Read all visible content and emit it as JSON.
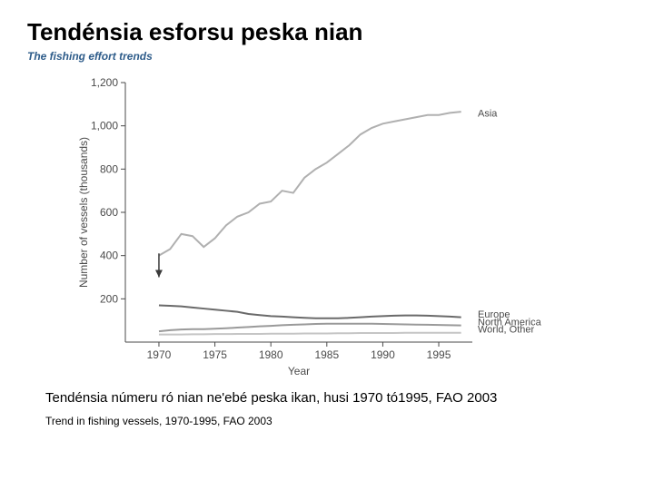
{
  "header": {
    "title": "Tendénsia esforsu peska nian",
    "subtitle": "The fishing effort trends"
  },
  "chart": {
    "type": "line",
    "xlabel": "Year",
    "ylabel": "Number of vessels (thousands)",
    "xlim": [
      1967,
      1998
    ],
    "ylim": [
      0,
      1200
    ],
    "xticks": [
      1970,
      1975,
      1980,
      1985,
      1990,
      1995
    ],
    "yticks": [
      200,
      400,
      600,
      800,
      1000,
      1200
    ],
    "ytick_labels": [
      "200",
      "400",
      "600",
      "800",
      "1,000",
      "1,200"
    ],
    "background_color": "#ffffff",
    "axis_color": "#4a4a4a",
    "line_width": 2,
    "series": [
      {
        "name": "Asia",
        "color": "#b0b0b0",
        "label_y": 1060,
        "data": [
          [
            1970,
            400
          ],
          [
            1971,
            430
          ],
          [
            1972,
            500
          ],
          [
            1973,
            490
          ],
          [
            1974,
            440
          ],
          [
            1975,
            480
          ],
          [
            1976,
            540
          ],
          [
            1977,
            580
          ],
          [
            1978,
            600
          ],
          [
            1979,
            640
          ],
          [
            1980,
            650
          ],
          [
            1981,
            700
          ],
          [
            1982,
            690
          ],
          [
            1983,
            760
          ],
          [
            1984,
            800
          ],
          [
            1985,
            830
          ],
          [
            1986,
            870
          ],
          [
            1987,
            910
          ],
          [
            1988,
            960
          ],
          [
            1989,
            990
          ],
          [
            1990,
            1010
          ],
          [
            1991,
            1020
          ],
          [
            1992,
            1030
          ],
          [
            1993,
            1040
          ],
          [
            1994,
            1050
          ],
          [
            1995,
            1050
          ],
          [
            1996,
            1060
          ],
          [
            1997,
            1065
          ]
        ]
      },
      {
        "name": "Europe",
        "color": "#6a6a6a",
        "label_y": 130,
        "data": [
          [
            1970,
            170
          ],
          [
            1971,
            168
          ],
          [
            1972,
            165
          ],
          [
            1973,
            160
          ],
          [
            1974,
            155
          ],
          [
            1975,
            150
          ],
          [
            1976,
            145
          ],
          [
            1977,
            140
          ],
          [
            1978,
            130
          ],
          [
            1979,
            125
          ],
          [
            1980,
            120
          ],
          [
            1981,
            118
          ],
          [
            1982,
            115
          ],
          [
            1983,
            112
          ],
          [
            1984,
            110
          ],
          [
            1985,
            110
          ],
          [
            1986,
            110
          ],
          [
            1987,
            112
          ],
          [
            1988,
            115
          ],
          [
            1989,
            118
          ],
          [
            1990,
            120
          ],
          [
            1991,
            122
          ],
          [
            1992,
            123
          ],
          [
            1993,
            123
          ],
          [
            1994,
            122
          ],
          [
            1995,
            120
          ],
          [
            1996,
            118
          ],
          [
            1997,
            115
          ]
        ]
      },
      {
        "name": "North America",
        "color": "#9a9a9a",
        "label_y": 95,
        "data": [
          [
            1970,
            50
          ],
          [
            1971,
            55
          ],
          [
            1972,
            58
          ],
          [
            1973,
            60
          ],
          [
            1974,
            60
          ],
          [
            1975,
            62
          ],
          [
            1976,
            64
          ],
          [
            1977,
            67
          ],
          [
            1978,
            70
          ],
          [
            1979,
            73
          ],
          [
            1980,
            75
          ],
          [
            1981,
            78
          ],
          [
            1982,
            80
          ],
          [
            1983,
            82
          ],
          [
            1984,
            84
          ],
          [
            1985,
            85
          ],
          [
            1986,
            85
          ],
          [
            1987,
            85
          ],
          [
            1988,
            85
          ],
          [
            1989,
            85
          ],
          [
            1990,
            84
          ],
          [
            1991,
            83
          ],
          [
            1992,
            82
          ],
          [
            1993,
            81
          ],
          [
            1994,
            80
          ],
          [
            1995,
            79
          ],
          [
            1996,
            78
          ],
          [
            1997,
            77
          ]
        ]
      },
      {
        "name": "World, Other",
        "color": "#c5c5c5",
        "label_y": 60,
        "data": [
          [
            1970,
            35
          ],
          [
            1971,
            35
          ],
          [
            1972,
            35
          ],
          [
            1973,
            36
          ],
          [
            1974,
            36
          ],
          [
            1975,
            37
          ],
          [
            1976,
            37
          ],
          [
            1977,
            38
          ],
          [
            1978,
            38
          ],
          [
            1979,
            38
          ],
          [
            1980,
            39
          ],
          [
            1981,
            39
          ],
          [
            1982,
            39
          ],
          [
            1983,
            40
          ],
          [
            1984,
            40
          ],
          [
            1985,
            40
          ],
          [
            1986,
            41
          ],
          [
            1987,
            41
          ],
          [
            1988,
            42
          ],
          [
            1989,
            42
          ],
          [
            1990,
            42
          ],
          [
            1991,
            42
          ],
          [
            1992,
            43
          ],
          [
            1993,
            43
          ],
          [
            1994,
            43
          ],
          [
            1995,
            43
          ],
          [
            1996,
            43
          ],
          [
            1997,
            43
          ]
        ]
      }
    ],
    "arrow": {
      "at_x": 1970,
      "from_y": 410,
      "to_y": 300,
      "color": "#3a3a3a"
    }
  },
  "caption": {
    "main": "Tendénsia númeru ró nian ne'ebé peska ikan, husi 1970 tó1995, FAO 2003",
    "sub": "Trend in fishing vessels, 1970-1995, FAO 2003"
  }
}
